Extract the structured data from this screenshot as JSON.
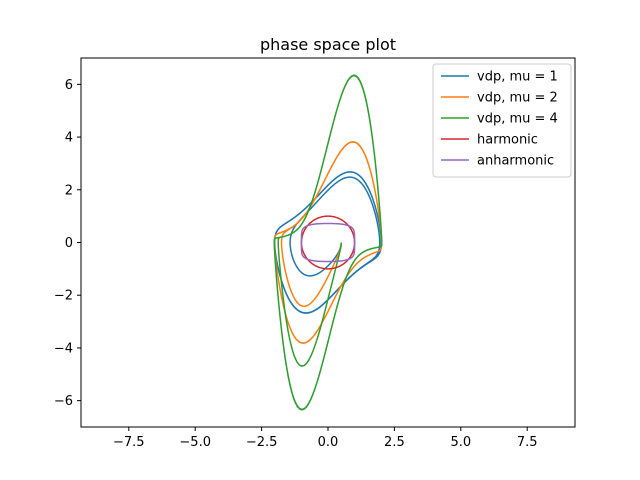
{
  "chart_data": {
    "type": "line",
    "title": "phase space plot",
    "xlabel": "",
    "ylabel": "",
    "xlim": [
      -9.3,
      9.3
    ],
    "ylim": [
      -7.0,
      7.0
    ],
    "x_ticks": [
      -7.5,
      -5.0,
      -2.5,
      0.0,
      2.5,
      5.0,
      7.5
    ],
    "x_tick_labels": [
      "−7.5",
      "−5.0",
      "−2.5",
      "0.0",
      "2.5",
      "5.0",
      "7.5"
    ],
    "y_ticks": [
      -6,
      -4,
      -2,
      0,
      2,
      4,
      6
    ],
    "y_tick_labels": [
      "−6",
      "−4",
      "−2",
      "0",
      "2",
      "4",
      "6"
    ],
    "grid": false,
    "legend_position": "top-right",
    "series": [
      {
        "name": "vdp, mu = 1",
        "color": "#1f77b4",
        "kind": "vdp",
        "mu": 1
      },
      {
        "name": "vdp, mu = 2",
        "color": "#ff7f0e",
        "kind": "vdp",
        "mu": 2
      },
      {
        "name": "vdp, mu = 4",
        "color": "#2ca02c",
        "kind": "vdp",
        "mu": 4
      },
      {
        "name": "harmonic",
        "color": "#d62728",
        "kind": "harmonic",
        "amplitude": 1.0
      },
      {
        "name": "anharmonic",
        "color": "#9467bd",
        "kind": "anharmonic",
        "amplitude": 1.0,
        "vmax": 0.72
      }
    ]
  }
}
